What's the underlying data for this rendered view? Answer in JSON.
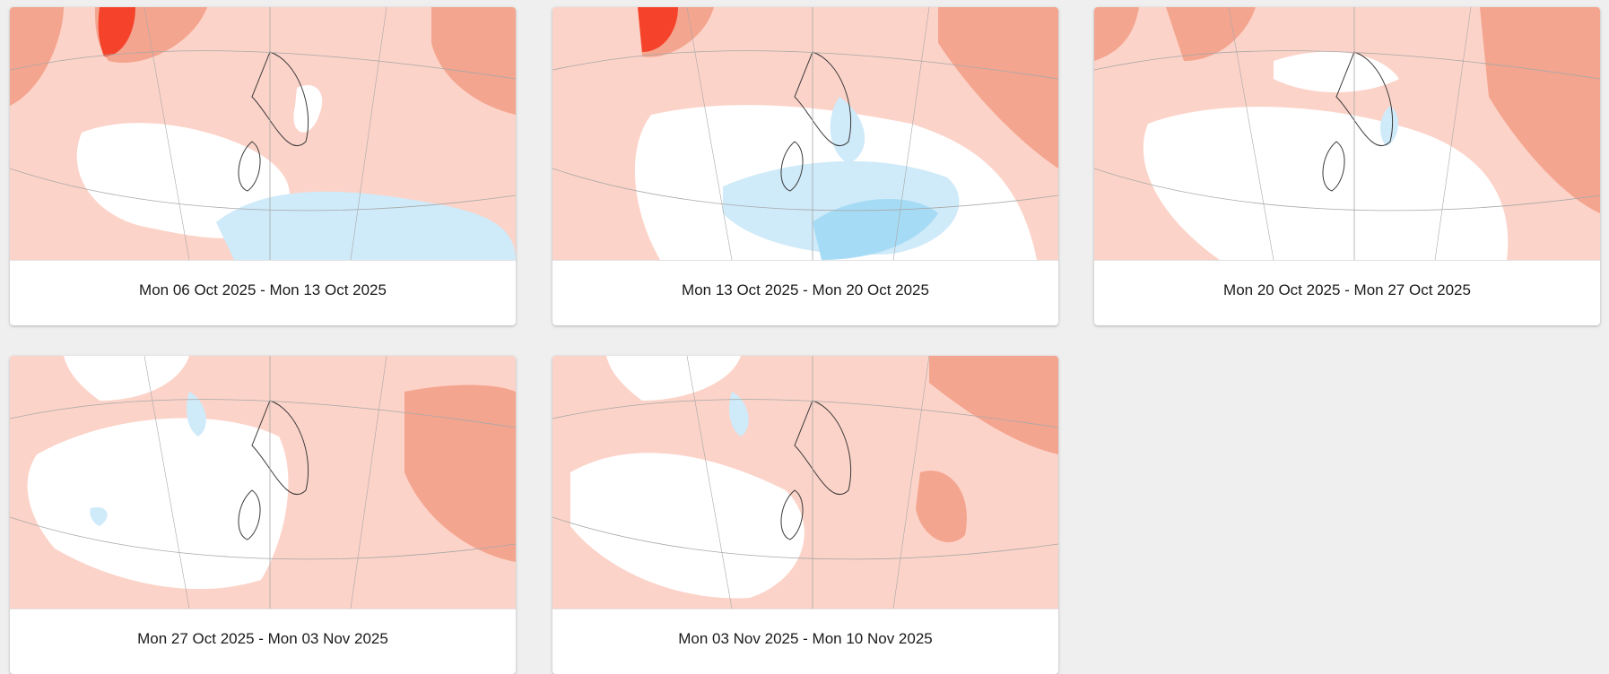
{
  "colors": {
    "page_background": "#efefef",
    "card_background": "#ffffff",
    "anomaly_strong_warm": "#f5432b",
    "anomaly_warm": "#f4a58f",
    "anomaly_light_warm": "#fcd3c8",
    "anomaly_neutral": "#ffffff",
    "anomaly_light_cool": "#cfeaf9",
    "anomaly_cool": "#a6dbf5",
    "coastline": "#3a3a3a",
    "graticule": "#a8a8a8"
  },
  "maps": [
    {
      "caption": "Mon 06 Oct 2025 - Mon 13 Oct 2025",
      "icon": "weekly-anomaly-map"
    },
    {
      "caption": "Mon 13 Oct 2025 - Mon 20 Oct 2025",
      "icon": "weekly-anomaly-map"
    },
    {
      "caption": "Mon 20 Oct 2025 - Mon 27 Oct 2025",
      "icon": "weekly-anomaly-map"
    },
    {
      "caption": "Mon 27 Oct 2025 - Mon 03 Nov 2025",
      "icon": "weekly-anomaly-map"
    },
    {
      "caption": "Mon 03 Nov 2025 - Mon 10 Nov 2025",
      "icon": "weekly-anomaly-map"
    }
  ]
}
